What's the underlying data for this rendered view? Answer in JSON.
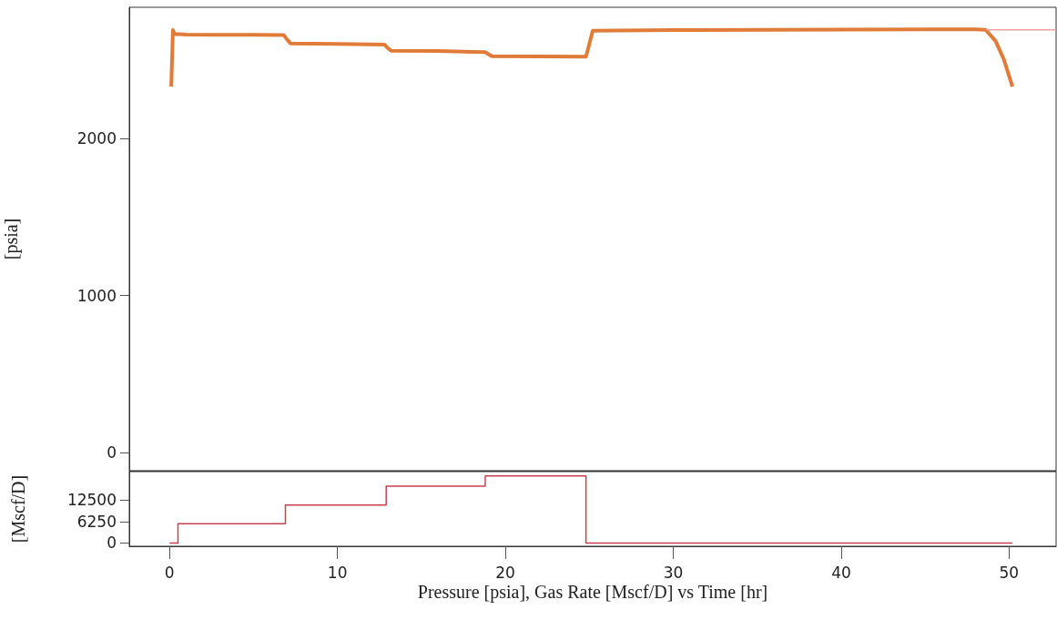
{
  "chart_data": [
    {
      "type": "line",
      "ylabel": "[psia]",
      "marker": "none",
      "tick_labels": "y",
      "xlim": [
        -2.4,
        52.8
      ],
      "xticks": [
        0,
        10,
        20,
        30,
        40,
        50
      ],
      "ylim": [
        -116,
        2835
      ],
      "yticks": [
        0,
        1000,
        2000
      ],
      "series": [
        {
          "color": "#e07b39",
          "x": [
            0.1,
            0.2,
            0.3,
            1,
            3,
            5,
            6.8,
            7,
            7.2,
            10,
            12.8,
            13,
            13.2,
            16,
            18.8,
            19,
            19.2,
            22,
            24.8,
            25,
            25.2,
            30,
            40,
            48,
            48.6,
            49.2,
            49.7,
            50.2
          ],
          "values": [
            2330,
            2690,
            2665,
            2661,
            2660,
            2660,
            2658,
            2630,
            2605,
            2602,
            2598,
            2575,
            2558,
            2556,
            2550,
            2535,
            2524,
            2522,
            2520,
            2600,
            2685,
            2690,
            2693,
            2695,
            2692,
            2620,
            2500,
            2330
          ]
        },
        {
          "color": "#f2a0a0",
          "x": [
            48.6,
            52.8
          ],
          "values": [
            2692,
            2692
          ]
        }
      ]
    },
    {
      "type": "step",
      "ylabel": "[Mscf/D]",
      "xlabel": "Pressure [psia], Gas Rate [Mscf/D] vs Time [hr]",
      "marker": "none",
      "xlim": [
        -2.4,
        52.8
      ],
      "xticks": [
        0,
        10,
        20,
        30,
        40,
        50
      ],
      "ylim": [
        -930,
        20745
      ],
      "yticks": [
        0,
        6250,
        12500
      ],
      "series": [
        {
          "color": "#c8404f",
          "x": [
            0,
            0.5,
            6.9,
            12.9,
            18.8,
            24.8,
            50.2
          ],
          "values": [
            0,
            5600,
            11000,
            16500,
            19500,
            0,
            0
          ]
        }
      ]
    }
  ]
}
